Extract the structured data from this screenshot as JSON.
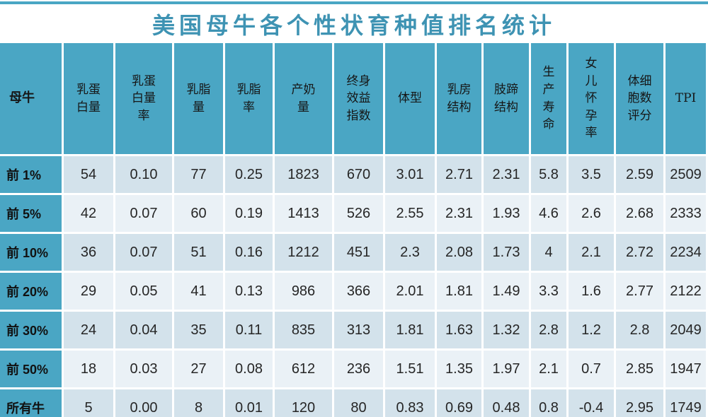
{
  "title_bar": {
    "accent_rule": "top-teal-line"
  },
  "colors": {
    "accent_teal": "#4AA6C4",
    "title_teal": "#3E93B3",
    "band_dark": "#D3E2EB",
    "band_light": "#EAF1F6",
    "text_dark": "#262626"
  },
  "display": {
    "header_labels_wrapped": [
      "母牛",
      "乳蛋\n白量",
      "乳蛋\n白量\n率",
      "乳脂\n量",
      "乳脂\n率",
      "产奶\n量",
      "终身\n效益\n指数",
      "体型",
      "乳房\n结构",
      "肢蹄\n结构",
      "生\n产\n寿\n命",
      "女\n儿\n怀\n孕\n率",
      "体细\n胞数\n评分",
      "TPI"
    ]
  },
  "chart_data": {
    "type": "table",
    "title": "美国母牛各个性状育种值排名统计",
    "columns": [
      "母牛",
      "乳蛋白量",
      "乳蛋白量率",
      "乳脂量",
      "乳脂率",
      "产奶量",
      "终身效益指数",
      "体型",
      "乳房结构",
      "肢蹄结构",
      "生产寿命",
      "女儿怀孕率",
      "体细胞数评分",
      "TPI"
    ],
    "rows": [
      {
        "label": "前 1%",
        "values": [
          "54",
          "0.10",
          "77",
          "0.25",
          "1823",
          "670",
          "3.01",
          "2.71",
          "2.31",
          "5.8",
          "3.5",
          "2.59",
          "2509"
        ]
      },
      {
        "label": "前 5%",
        "values": [
          "42",
          "0.07",
          "60",
          "0.19",
          "1413",
          "526",
          "2.55",
          "2.31",
          "1.93",
          "4.6",
          "2.6",
          "2.68",
          "2333"
        ]
      },
      {
        "label": "前 10%",
        "values": [
          "36",
          "0.07",
          "51",
          "0.16",
          "1212",
          "451",
          "2.3",
          "2.08",
          "1.73",
          "4",
          "2.1",
          "2.72",
          "2234"
        ]
      },
      {
        "label": "前 20%",
        "values": [
          "29",
          "0.05",
          "41",
          "0.13",
          "986",
          "366",
          "2.01",
          "1.81",
          "1.49",
          "3.3",
          "1.6",
          "2.77",
          "2122"
        ]
      },
      {
        "label": "前 30%",
        "values": [
          "24",
          "0.04",
          "35",
          "0.11",
          "835",
          "313",
          "1.81",
          "1.63",
          "1.32",
          "2.8",
          "1.2",
          "2.8",
          "2049"
        ]
      },
      {
        "label": "前 50%",
        "values": [
          "18",
          "0.03",
          "27",
          "0.08",
          "612",
          "236",
          "1.51",
          "1.35",
          "1.97",
          "2.1",
          "0.7",
          "2.85",
          "1947"
        ]
      },
      {
        "label": "所有牛",
        "values": [
          "5",
          "0.00",
          "8",
          "0.01",
          "120",
          "80",
          "0.83",
          "0.69",
          "0.48",
          "0.8",
          "-0.4",
          "2.95",
          "1749"
        ]
      }
    ]
  }
}
